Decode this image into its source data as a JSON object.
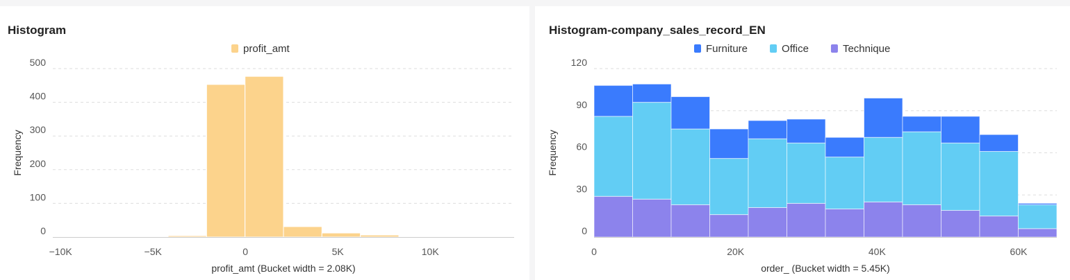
{
  "chart_data": [
    {
      "type": "bar",
      "title": "Histogram",
      "legend": [
        "profit_amt"
      ],
      "legend_position": "top-center",
      "xlabel": "profit_amt (Bucket width = 2.08K)",
      "ylabel": "Frequency",
      "bucket_width": 2080,
      "x_start": -10420,
      "values": [
        1,
        1,
        1,
        4,
        453,
        477,
        31,
        12,
        6,
        2,
        1,
        1
      ],
      "color": "#FCD38C",
      "xlim": [
        -10420,
        14540
      ],
      "ylim": [
        0,
        500
      ],
      "yticks": [
        0,
        100,
        200,
        300,
        400,
        500
      ],
      "ytick_labels": [
        "0",
        "100",
        "200",
        "300",
        "400",
        "500"
      ],
      "xticks": [
        -10000,
        -5000,
        0,
        5000,
        10000
      ],
      "xtick_labels": [
        "−10K",
        "−5K",
        "0",
        "5K",
        "10K"
      ],
      "grid": true
    },
    {
      "type": "bar",
      "stacked": true,
      "title": "Histogram-company_sales_record_EN",
      "legend_position": "top-center",
      "xlabel": "order_   (Bucket width = 5.45K)",
      "ylabel": "Frequency",
      "bucket_width": 5450,
      "x_start": 0,
      "series": [
        {
          "name": "Technique",
          "color": "#8C83EC",
          "values": [
            29,
            27,
            23,
            16,
            21,
            24,
            20,
            25,
            23,
            19,
            15,
            6
          ]
        },
        {
          "name": "Office",
          "color": "#62CDF4",
          "values": [
            57,
            69,
            54,
            40,
            49,
            43,
            37,
            46,
            52,
            48,
            46,
            17
          ]
        },
        {
          "name": "Furniture",
          "color": "#3A7BFD",
          "values": [
            22,
            13,
            23,
            21,
            13,
            17,
            14,
            28,
            11,
            19,
            12,
            1
          ]
        }
      ],
      "legend": [
        "Furniture",
        "Office",
        "Technique"
      ],
      "xlim": [
        0,
        65400
      ],
      "ylim": [
        0,
        120
      ],
      "yticks": [
        0,
        30,
        60,
        90,
        120
      ],
      "ytick_labels": [
        "0",
        "30",
        "60",
        "90",
        "120"
      ],
      "xticks": [
        0,
        20000,
        40000,
        60000
      ],
      "xtick_labels": [
        "0",
        "20K",
        "40K",
        "60K"
      ],
      "grid": true
    }
  ]
}
